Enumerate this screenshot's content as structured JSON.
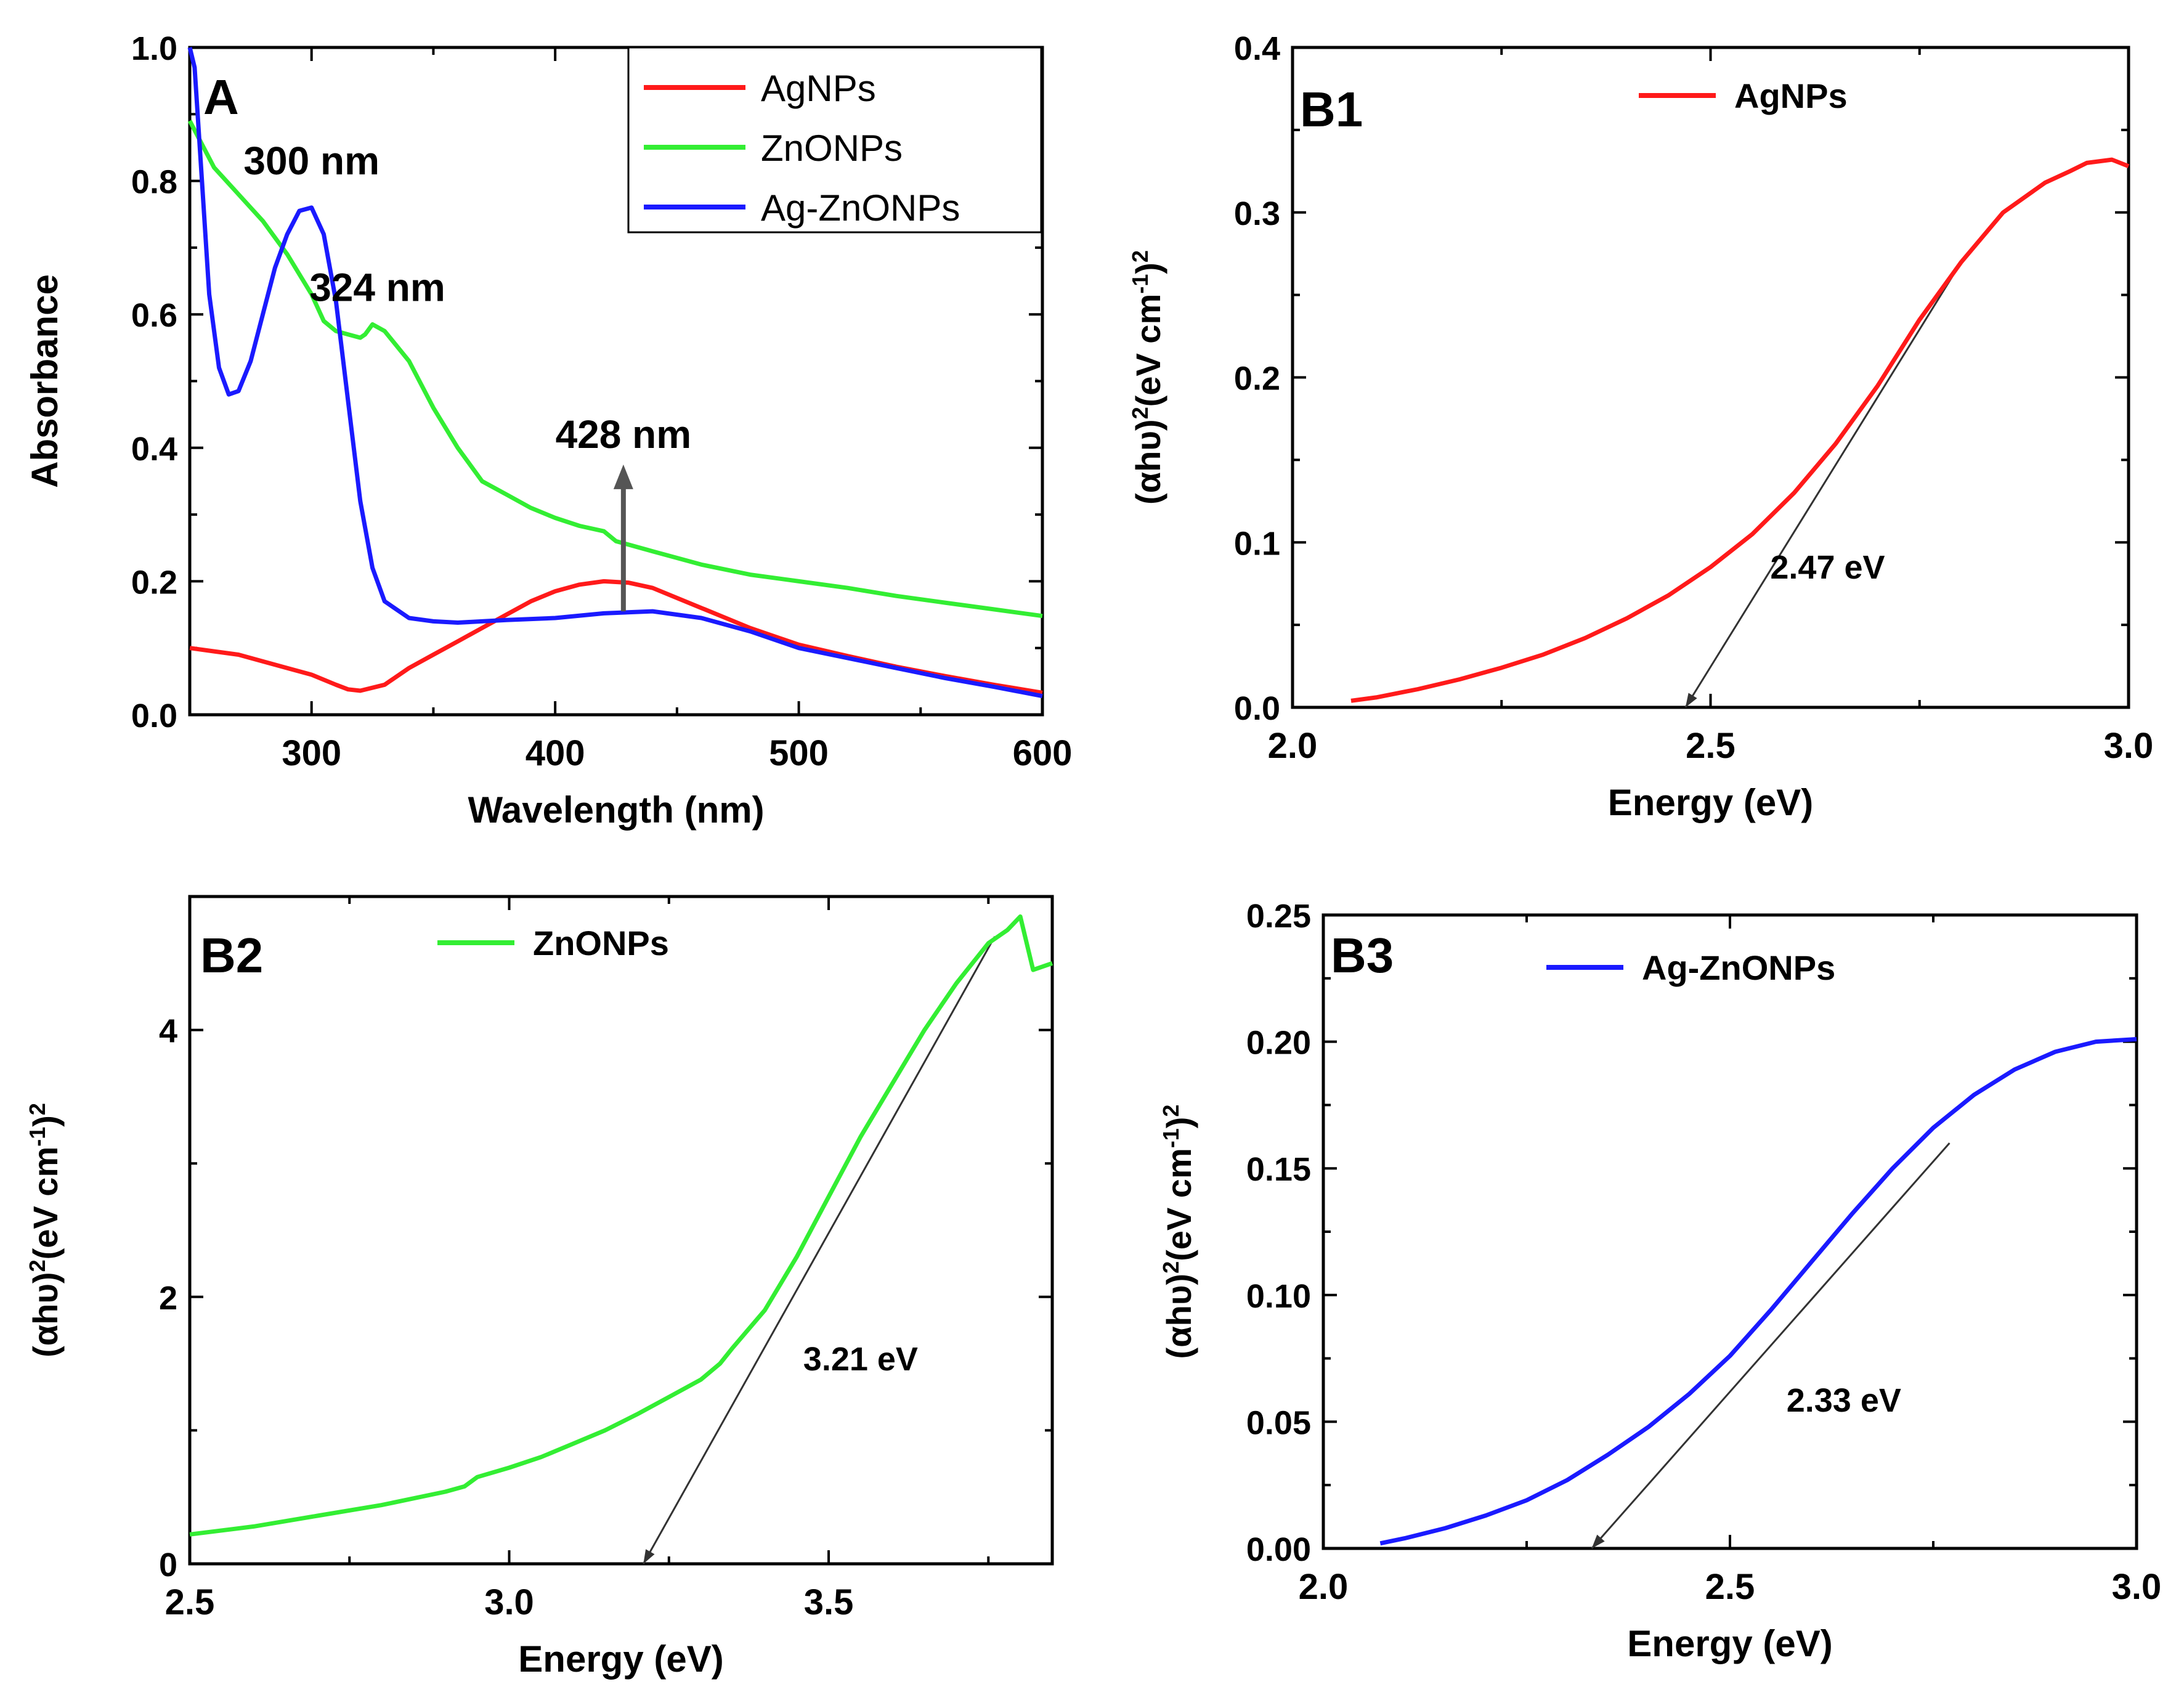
{
  "colors": {
    "agnps": "#ff1a1a",
    "znonps": "#33ee33",
    "agzno": "#1a1aff",
    "tangent": "#333333",
    "axis": "#000000"
  },
  "chart_data": [
    {
      "id": "A",
      "type": "line",
      "panel_label": "A",
      "title": "",
      "xlabel": "Wavelength (nm)",
      "ylabel": "Absorbance",
      "xlim": [
        250,
        600
      ],
      "ylim": [
        0,
        1.0
      ],
      "xticks": [
        300,
        400,
        500,
        600
      ],
      "xtick_labels": [
        "300",
        "400",
        "500",
        "600"
      ],
      "yticks": [
        0,
        0.2,
        0.4,
        0.6,
        0.8,
        1.0
      ],
      "ytick_labels": [
        "0.0",
        "0.2",
        "0.4",
        "0.6",
        "0.8",
        "1.0"
      ],
      "legend": {
        "position": "top-right",
        "boxed": true
      },
      "series": [
        {
          "name": "AgNPs",
          "color_key": "agnps",
          "x": [
            250,
            260,
            270,
            280,
            290,
            300,
            310,
            315,
            320,
            330,
            340,
            350,
            360,
            370,
            380,
            390,
            400,
            410,
            420,
            430,
            440,
            450,
            460,
            480,
            500,
            520,
            540,
            560,
            580,
            600
          ],
          "y": [
            0.1,
            0.095,
            0.09,
            0.08,
            0.07,
            0.06,
            0.045,
            0.038,
            0.036,
            0.045,
            0.07,
            0.09,
            0.11,
            0.13,
            0.15,
            0.17,
            0.185,
            0.195,
            0.2,
            0.198,
            0.19,
            0.175,
            0.16,
            0.13,
            0.105,
            0.088,
            0.072,
            0.058,
            0.045,
            0.033
          ]
        },
        {
          "name": "ZnONPs",
          "color_key": "znonps",
          "x": [
            250,
            260,
            270,
            280,
            290,
            300,
            305,
            310,
            315,
            320,
            322,
            325,
            330,
            340,
            350,
            360,
            370,
            380,
            390,
            400,
            410,
            420,
            425,
            430,
            440,
            460,
            480,
            500,
            520,
            540,
            560,
            580,
            600
          ],
          "y": [
            0.89,
            0.82,
            0.78,
            0.74,
            0.69,
            0.63,
            0.59,
            0.575,
            0.57,
            0.565,
            0.57,
            0.585,
            0.575,
            0.53,
            0.46,
            0.4,
            0.35,
            0.33,
            0.31,
            0.295,
            0.283,
            0.275,
            0.26,
            0.255,
            0.245,
            0.225,
            0.21,
            0.2,
            0.19,
            0.178,
            0.168,
            0.158,
            0.148
          ],
          "dashed": false
        },
        {
          "name": "Ag-ZnONPs",
          "color_key": "agzno",
          "x": [
            250,
            252,
            255,
            258,
            262,
            266,
            270,
            275,
            280,
            285,
            290,
            295,
            300,
            305,
            310,
            315,
            320,
            325,
            330,
            340,
            350,
            360,
            370,
            380,
            400,
            420,
            440,
            460,
            480,
            500,
            520,
            540,
            560,
            580,
            600
          ],
          "y": [
            1.0,
            0.97,
            0.8,
            0.63,
            0.52,
            0.48,
            0.485,
            0.53,
            0.6,
            0.67,
            0.72,
            0.755,
            0.76,
            0.72,
            0.62,
            0.47,
            0.32,
            0.22,
            0.17,
            0.145,
            0.14,
            0.138,
            0.14,
            0.142,
            0.145,
            0.152,
            0.155,
            0.145,
            0.125,
            0.1,
            0.085,
            0.07,
            0.055,
            0.042,
            0.028
          ]
        }
      ],
      "annotations": [
        {
          "text": "300 nm",
          "x": 300,
          "y": 0.81
        },
        {
          "text": "324 nm",
          "x": 327,
          "y": 0.62
        },
        {
          "text": "428 nm",
          "x": 428,
          "y": 0.4
        }
      ],
      "arrow": {
        "x": 428,
        "from_y": 0.155,
        "to_y": 0.375
      }
    },
    {
      "id": "B1",
      "type": "line",
      "panel_label": "B1",
      "xlabel": "Energy (eV)",
      "ylabel_main": "(αhυ)",
      "ylabel_sup1": "2",
      "ylabel_mid": "(eV cm",
      "ylabel_sup2": "-1",
      "ylabel_end": ")",
      "ylabel_sup3": "2",
      "xlim": [
        2.0,
        3.0
      ],
      "ylim": [
        0,
        0.4
      ],
      "xticks": [
        2.0,
        2.5,
        3.0
      ],
      "xtick_labels": [
        "2.0",
        "2.5",
        "3.0"
      ],
      "yticks": [
        0,
        0.1,
        0.2,
        0.3,
        0.4
      ],
      "ytick_labels": [
        "0.0",
        "0.1",
        "0.2",
        "0.3",
        "0.4"
      ],
      "legend": {
        "position": "top-center",
        "boxed": false
      },
      "series": [
        {
          "name": "AgNPs",
          "color_key": "agnps",
          "x": [
            2.07,
            2.1,
            2.15,
            2.2,
            2.25,
            2.3,
            2.35,
            2.4,
            2.45,
            2.5,
            2.55,
            2.6,
            2.65,
            2.7,
            2.75,
            2.8,
            2.85,
            2.9,
            2.93,
            2.95,
            2.98,
            3.0
          ],
          "y": [
            0.004,
            0.006,
            0.011,
            0.017,
            0.024,
            0.032,
            0.042,
            0.054,
            0.068,
            0.085,
            0.105,
            0.13,
            0.16,
            0.195,
            0.235,
            0.27,
            0.3,
            0.318,
            0.325,
            0.33,
            0.332,
            0.328
          ]
        }
      ],
      "tangent": {
        "x1": 2.47,
        "y1": 0.0,
        "x2": 2.8,
        "y2": 0.27
      },
      "annotations": [
        {
          "text": "2.47 eV",
          "x": 2.64,
          "y": 0.078
        }
      ]
    },
    {
      "id": "B2",
      "type": "line",
      "panel_label": "B2",
      "xlabel": "Energy (eV)",
      "ylabel_main": "(αhυ)",
      "ylabel_sup1": "2",
      "ylabel_mid": "(eV cm",
      "ylabel_sup2": "-1",
      "ylabel_end": ")",
      "ylabel_sup3": "2",
      "xlim": [
        2.5,
        3.85
      ],
      "ylim": [
        0,
        5
      ],
      "xticks": [
        2.5,
        3.0,
        3.5
      ],
      "xtick_labels": [
        "2.5",
        "3.0",
        "3.5"
      ],
      "yticks": [
        0,
        2,
        4
      ],
      "ytick_labels": [
        "0",
        "2",
        "4"
      ],
      "legend": {
        "position": "top-center",
        "boxed": false
      },
      "series": [
        {
          "name": "ZnONPs",
          "color_key": "znonps",
          "x": [
            2.5,
            2.6,
            2.7,
            2.8,
            2.9,
            2.93,
            2.95,
            3.0,
            3.05,
            3.1,
            3.15,
            3.2,
            3.25,
            3.3,
            3.33,
            3.35,
            3.4,
            3.45,
            3.5,
            3.55,
            3.6,
            3.65,
            3.7,
            3.75,
            3.78,
            3.8,
            3.82,
            3.85
          ],
          "y": [
            0.22,
            0.28,
            0.36,
            0.44,
            0.54,
            0.58,
            0.65,
            0.72,
            0.8,
            0.9,
            1.0,
            1.12,
            1.25,
            1.38,
            1.5,
            1.62,
            1.9,
            2.3,
            2.75,
            3.2,
            3.6,
            4.0,
            4.35,
            4.65,
            4.75,
            4.85,
            4.45,
            4.5
          ]
        }
      ],
      "tangent": {
        "x1": 3.21,
        "y1": 0.0,
        "x2": 3.76,
        "y2": 4.7
      },
      "annotations": [
        {
          "text": "3.21 eV",
          "x": 3.55,
          "y": 1.45
        }
      ]
    },
    {
      "id": "B3",
      "type": "line",
      "panel_label": "B3",
      "xlabel": "Energy (eV)",
      "ylabel_main": "(αhυ)",
      "ylabel_sup1": "2",
      "ylabel_mid": "(eV cm",
      "ylabel_sup2": "-1",
      "ylabel_end": ")",
      "ylabel_sup3": "2",
      "xlim": [
        2.0,
        3.0
      ],
      "ylim": [
        0,
        0.25
      ],
      "xticks": [
        2.0,
        2.5,
        3.0
      ],
      "xtick_labels": [
        "2.0",
        "2.5",
        "3.0"
      ],
      "yticks": [
        0,
        0.05,
        0.1,
        0.15,
        0.2,
        0.25
      ],
      "ytick_labels": [
        "0.00",
        "0.05",
        "0.10",
        "0.15",
        "0.20",
        "0.25"
      ],
      "legend": {
        "position": "top-center",
        "boxed": false
      },
      "series": [
        {
          "name": "Ag-ZnONPs",
          "color_key": "agzno",
          "x": [
            2.07,
            2.1,
            2.15,
            2.2,
            2.25,
            2.3,
            2.35,
            2.4,
            2.45,
            2.5,
            2.55,
            2.6,
            2.65,
            2.7,
            2.75,
            2.8,
            2.85,
            2.9,
            2.95,
            3.0
          ],
          "y": [
            0.002,
            0.004,
            0.008,
            0.013,
            0.019,
            0.027,
            0.037,
            0.048,
            0.061,
            0.076,
            0.094,
            0.113,
            0.132,
            0.15,
            0.166,
            0.179,
            0.189,
            0.196,
            0.2,
            0.201
          ]
        }
      ],
      "tangent": {
        "x1": 2.33,
        "y1": 0.0,
        "x2": 2.77,
        "y2": 0.16
      },
      "annotations": [
        {
          "text": "2.33 eV",
          "x": 2.64,
          "y": 0.054
        }
      ]
    }
  ]
}
